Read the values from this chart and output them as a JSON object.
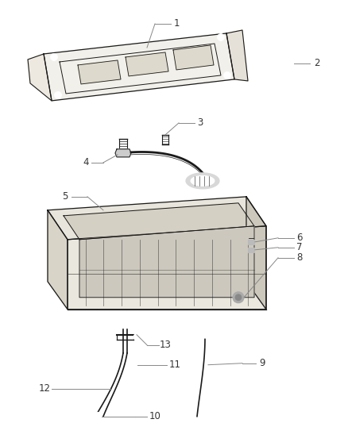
{
  "bg_color": "#ffffff",
  "line_color": "#1a1a1a",
  "callout_color": "#888888",
  "label_color": "#333333",
  "fill_light": "#f5f5f5",
  "fill_mid": "#e8e8e8",
  "fill_dark": "#d0d0d0",
  "fig_w": 4.38,
  "fig_h": 5.33,
  "dpi": 100
}
